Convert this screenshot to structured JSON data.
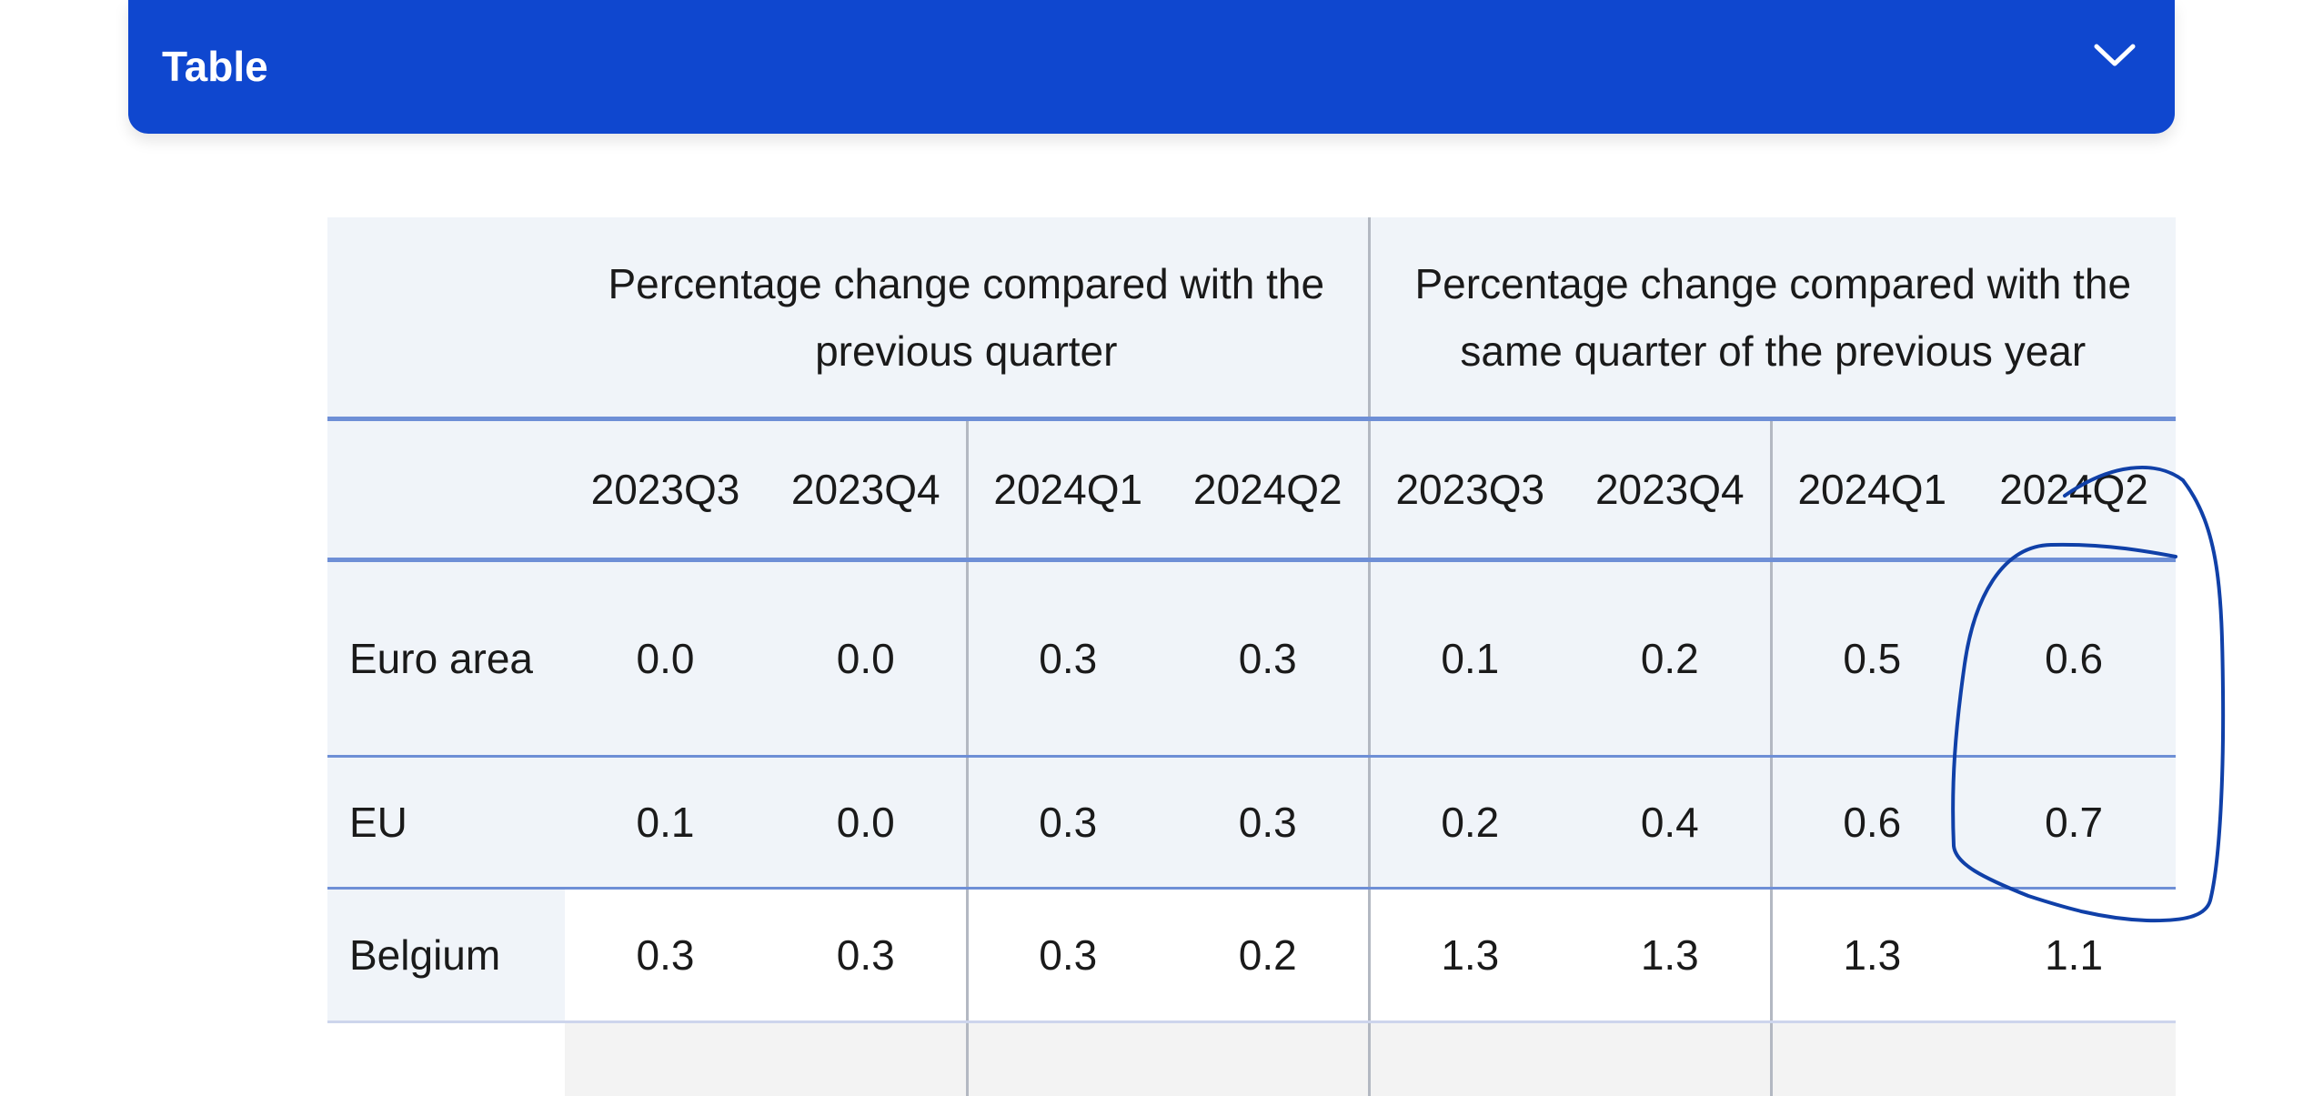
{
  "header": {
    "title": "Table",
    "toggle_icon": "chevron-down-icon"
  },
  "table": {
    "group_headers": [
      "Percentage change compared with the previous quarter",
      "Percentage change compared with the same quarter of the previous year"
    ],
    "periods": [
      "2023Q3",
      "2023Q4",
      "2024Q1",
      "2024Q2",
      "2023Q3",
      "2023Q4",
      "2024Q1",
      "2024Q2"
    ],
    "rows": [
      {
        "name": "Euro area",
        "values": [
          "0.0",
          "0.0",
          "0.3",
          "0.3",
          "0.1",
          "0.2",
          "0.5",
          "0.6"
        ]
      },
      {
        "name": "EU",
        "values": [
          "0.1",
          "0.0",
          "0.3",
          "0.3",
          "0.2",
          "0.4",
          "0.6",
          "0.7"
        ]
      },
      {
        "name": "Belgium",
        "values": [
          "0.3",
          "0.3",
          "0.3",
          "0.2",
          "1.3",
          "1.3",
          "1.3",
          "1.1"
        ]
      }
    ]
  },
  "colors": {
    "header_bar": "#0f47cf",
    "table_background": "#f0f4f9",
    "row_rule": "#6e8fd6",
    "annotation_ink": "#1040a8"
  }
}
